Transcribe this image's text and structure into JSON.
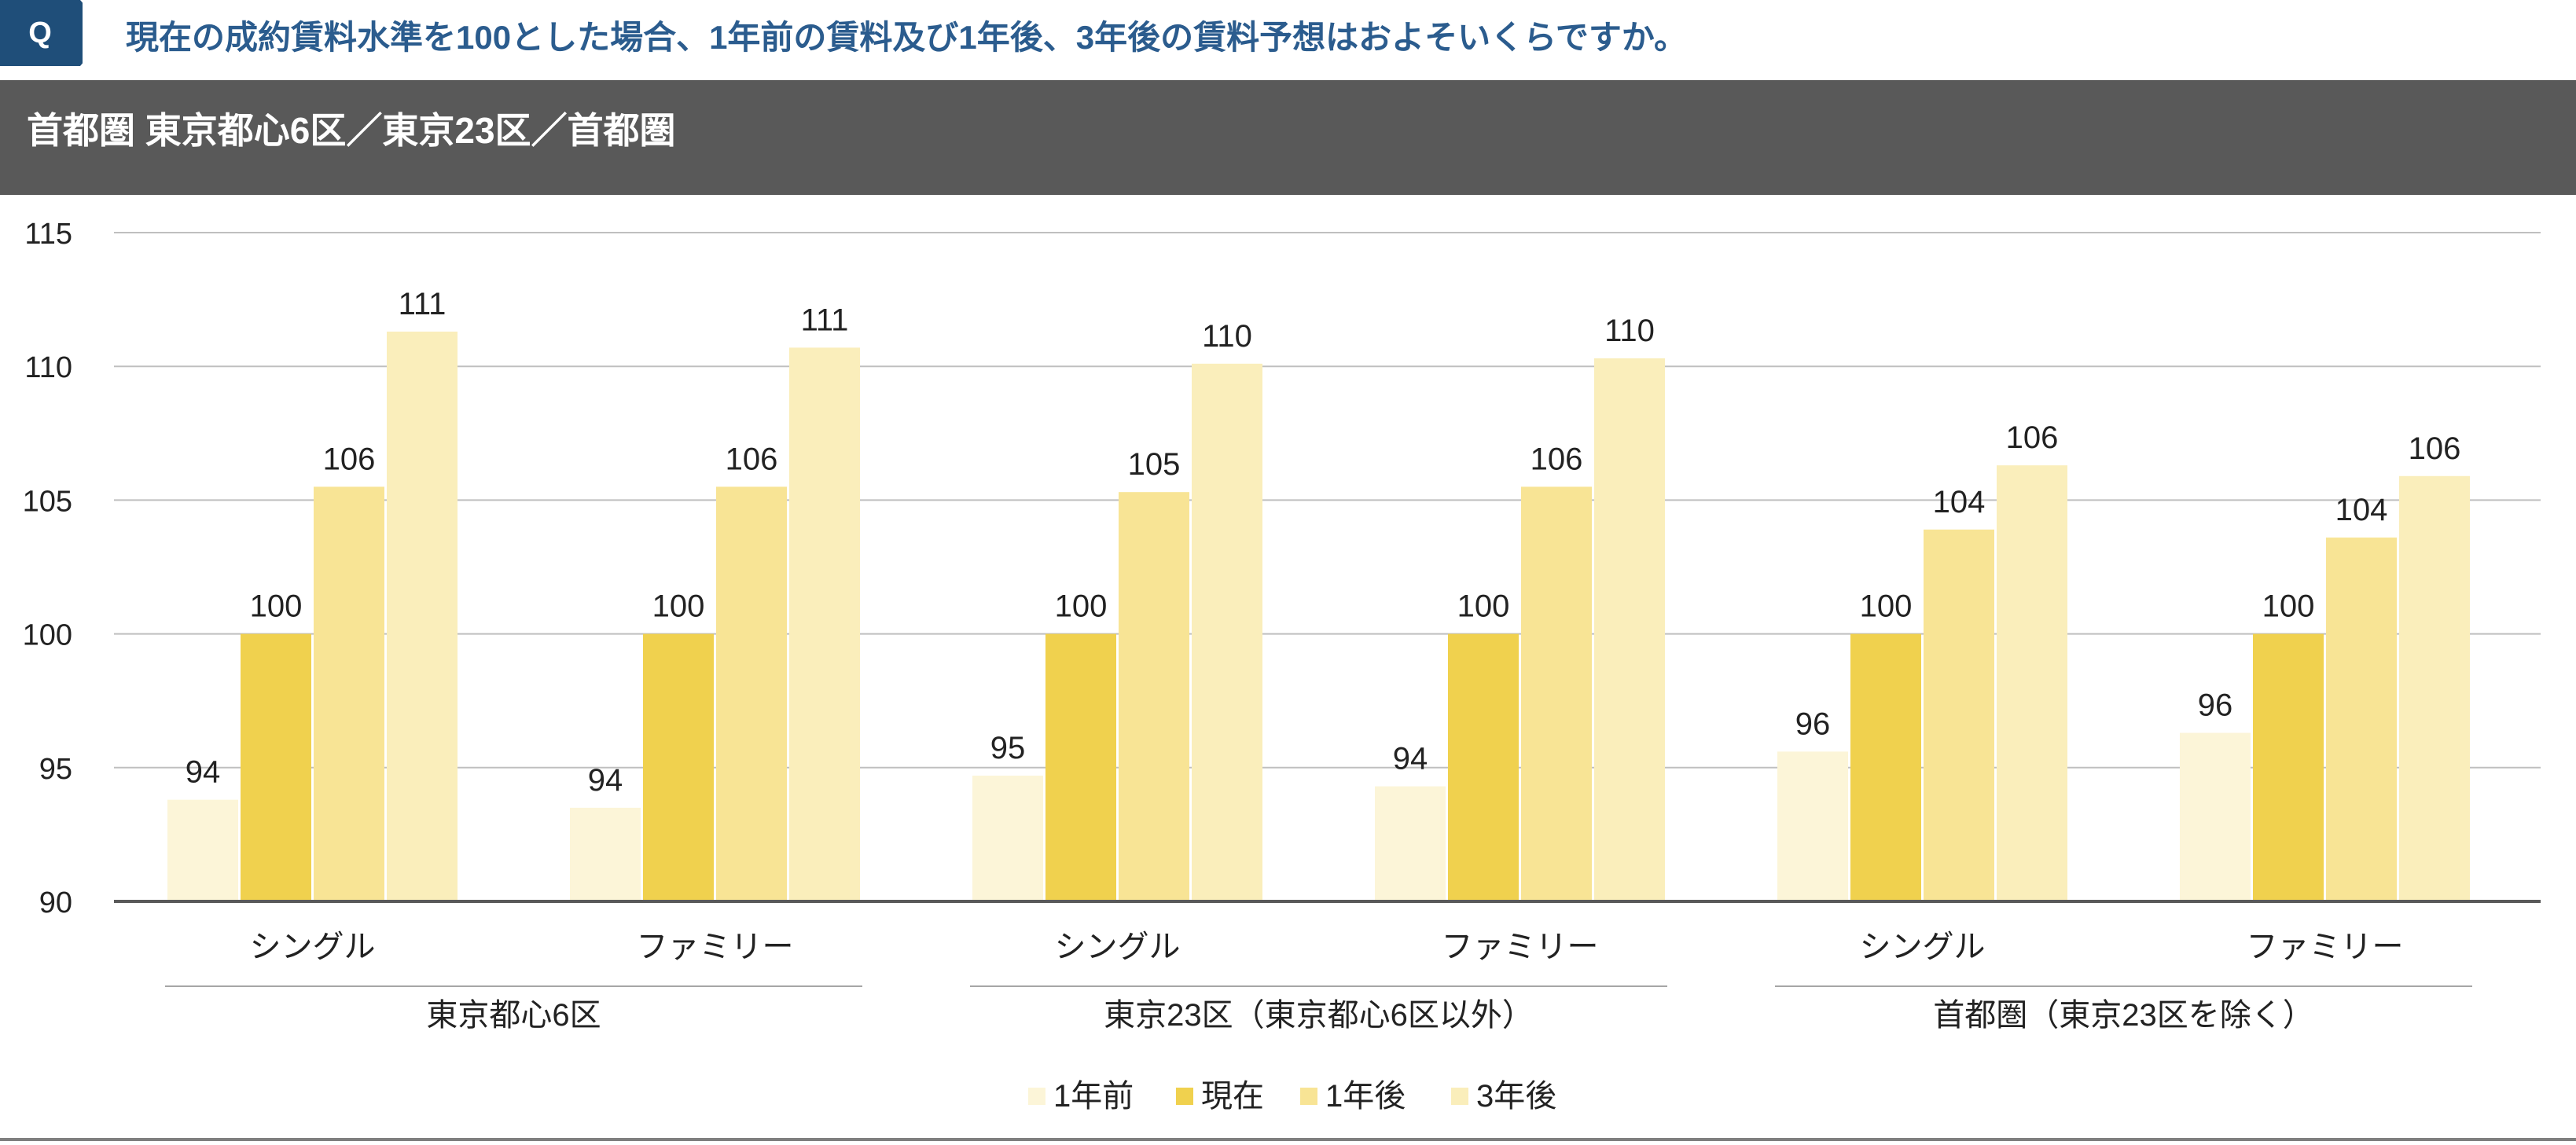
{
  "question": {
    "badge": "Q",
    "text": "現在の成約賃料水準を100とした場合、1年前の賃料及び1年後、3年後の賃料予想はおよそいくらですか。",
    "color": "#2b5c8e"
  },
  "header": {
    "title": "首都圏 東京都心6区／東京23区／首都圏",
    "background": "#595959"
  },
  "chart_data": {
    "type": "bar",
    "ylim": [
      90,
      115
    ],
    "yticks": [
      90,
      95,
      100,
      105,
      110,
      115
    ],
    "grid": true,
    "legend_position": "bottom",
    "groups": [
      {
        "label": "東京都心6区",
        "categories": [
          "シングル",
          "ファミリー"
        ]
      },
      {
        "label": "東京23区（東京都心6区以外）",
        "categories": [
          "シングル",
          "ファミリー"
        ]
      },
      {
        "label": "首都圏（東京23区を除く）",
        "categories": [
          "シングル",
          "ファミリー"
        ]
      }
    ],
    "series": [
      {
        "name": "1年前",
        "color": "#fcf5d8",
        "values": [
          93.8,
          93.5,
          94.7,
          94.3,
          95.6,
          96.3
        ],
        "labels": [
          "94",
          "94",
          "95",
          "94",
          "96",
          "96"
        ]
      },
      {
        "name": "現在",
        "color": "#f0d14e",
        "values": [
          100,
          100,
          100,
          100,
          100,
          100
        ],
        "labels": [
          "100",
          "100",
          "100",
          "100",
          "100",
          "100"
        ]
      },
      {
        "name": "1年後",
        "color": "#f8e495",
        "values": [
          105.5,
          105.5,
          105.3,
          105.5,
          103.9,
          103.6
        ],
        "labels": [
          "106",
          "106",
          "105",
          "106",
          "104",
          "104"
        ]
      },
      {
        "name": "3年後",
        "color": "#faeebb",
        "values": [
          111.3,
          110.7,
          110.1,
          110.3,
          106.3,
          105.9
        ],
        "labels": [
          "111",
          "111",
          "110",
          "110",
          "106",
          "106"
        ]
      }
    ]
  }
}
